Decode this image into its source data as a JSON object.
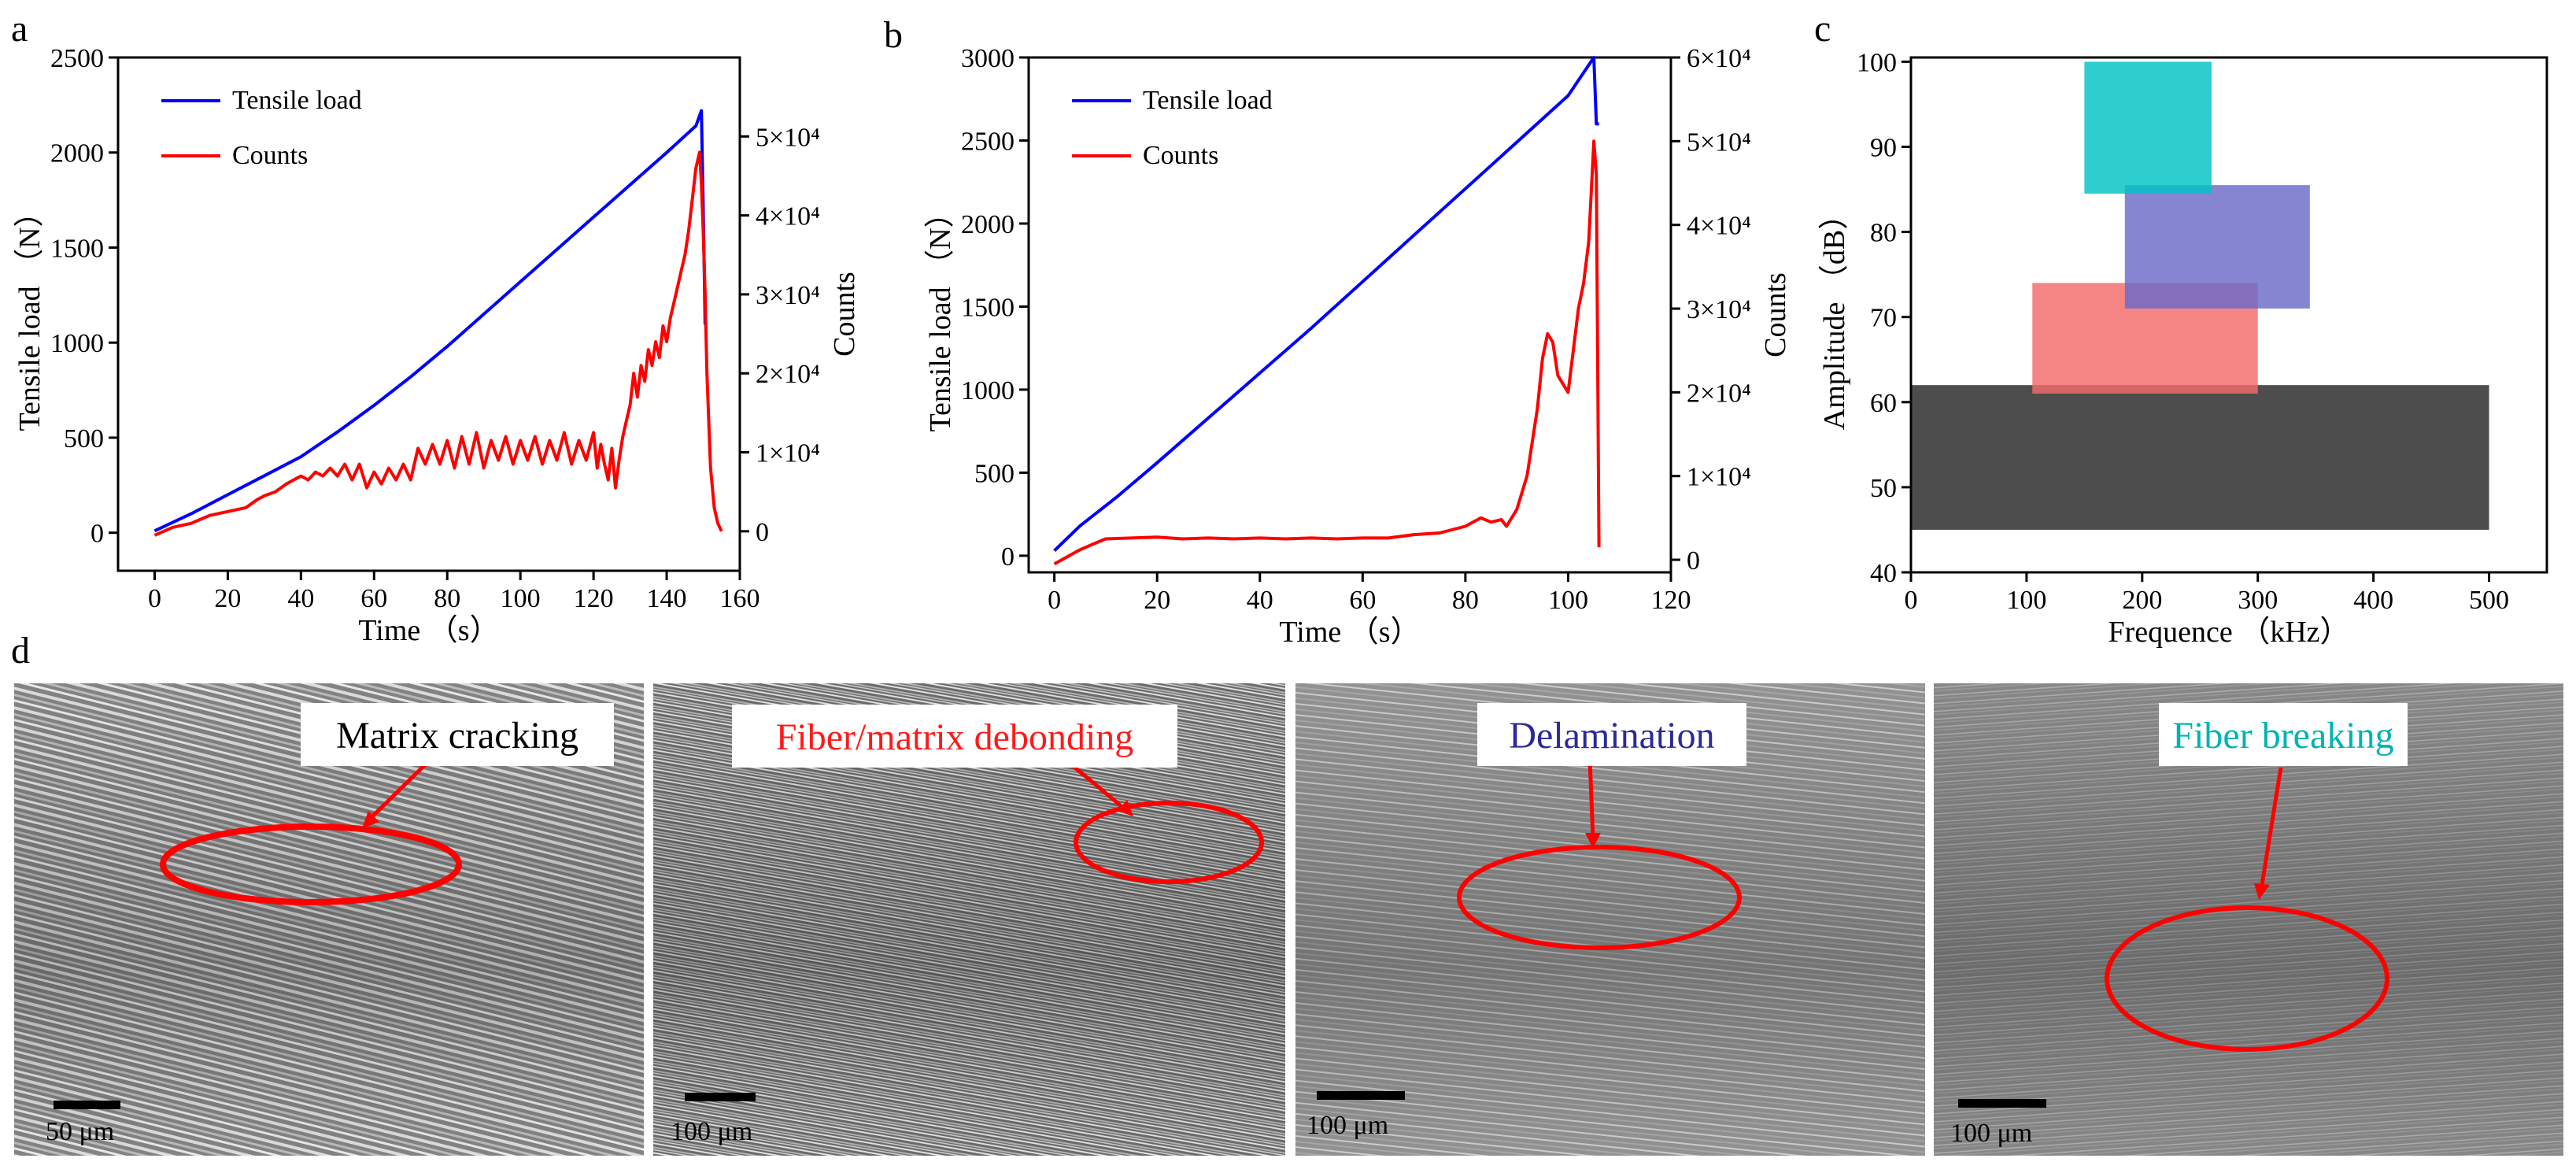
{
  "panels": {
    "a": {
      "label": "a"
    },
    "b": {
      "label": "b"
    },
    "c": {
      "label": "c"
    },
    "d": {
      "label": "d"
    }
  },
  "colors": {
    "load": "#0000ff",
    "counts": "#ff0000",
    "fiber_breaking": "#00c3c3",
    "delamination": "#6a6ac8",
    "debonding": "#f36a6a",
    "matrix": "#4d4d4d",
    "marker": "#ff0000"
  },
  "chart_data": [
    {
      "id": "a",
      "type": "line",
      "xlabel": "Time （s）",
      "ylabel": "Tensile load （N）",
      "y2label": "Counts",
      "xlim": [
        -10,
        160
      ],
      "ylim": [
        -200,
        2500
      ],
      "y2lim": [
        -5000,
        60000
      ],
      "xticks": [
        "0",
        "20",
        "40",
        "60",
        "80",
        "100",
        "120",
        "140",
        "160"
      ],
      "yticks": [
        "0",
        "500",
        "1000",
        "1500",
        "2000",
        "2500"
      ],
      "y2ticks": [
        "0",
        "1×10⁴",
        "2×10⁴",
        "3×10⁴",
        "4×10⁴",
        "5×10⁴"
      ],
      "legend_position": "top-left",
      "series": [
        {
          "name": "Tensile load",
          "axis": "left",
          "x": [
            0,
            10,
            20,
            30,
            40,
            50,
            60,
            70,
            80,
            90,
            100,
            110,
            120,
            130,
            140,
            148,
            149.5,
            150,
            150.5,
            151
          ],
          "y": [
            10,
            100,
            200,
            300,
            400,
            530,
            670,
            820,
            980,
            1150,
            1320,
            1490,
            1660,
            1830,
            2000,
            2140,
            2220,
            1700,
            1100,
            1100
          ]
        },
        {
          "name": "Counts",
          "axis": "right",
          "x": [
            0,
            5,
            10,
            15,
            20,
            25,
            28,
            30,
            33,
            36,
            38,
            40,
            42,
            44,
            46,
            48,
            50,
            52,
            54,
            56,
            58,
            60,
            62,
            64,
            66,
            68,
            70,
            72,
            74,
            76,
            78,
            80,
            82,
            84,
            86,
            88,
            90,
            92,
            94,
            96,
            98,
            100,
            102,
            104,
            106,
            108,
            110,
            112,
            114,
            116,
            118,
            120,
            121,
            122,
            123,
            124,
            125,
            126,
            127,
            128,
            129,
            130,
            131,
            132,
            133,
            134,
            135,
            136,
            137,
            138,
            139,
            140,
            141,
            142,
            143,
            144,
            145,
            146,
            147,
            148,
            149,
            149.5,
            150,
            150.5,
            151,
            152,
            153,
            154,
            155
          ],
          "y": [
            -500,
            500,
            1000,
            2000,
            2500,
            3000,
            4000,
            4500,
            5000,
            6000,
            6500,
            7000,
            6500,
            7500,
            7000,
            8000,
            7000,
            8500,
            6500,
            8500,
            5500,
            7500,
            6000,
            8000,
            6500,
            8500,
            6500,
            10500,
            8500,
            11000,
            8500,
            11500,
            8000,
            12000,
            8500,
            12500,
            8000,
            11500,
            9000,
            12000,
            8500,
            11500,
            9000,
            12000,
            8500,
            11500,
            9000,
            12500,
            8500,
            11500,
            9000,
            12500,
            8000,
            11000,
            8500,
            6500,
            10500,
            5500,
            9000,
            12000,
            14000,
            16000,
            20000,
            17000,
            21000,
            19000,
            23000,
            21000,
            24000,
            22000,
            26000,
            24000,
            27000,
            29000,
            31000,
            33000,
            35000,
            38000,
            42000,
            46000,
            48000,
            44000,
            38000,
            30000,
            20000,
            8000,
            3000,
            1000,
            0
          ]
        }
      ]
    },
    {
      "id": "b",
      "type": "line",
      "xlabel": "Time （s）",
      "ylabel": "Tensile load （N）",
      "y2label": "Counts",
      "xlim": [
        -5,
        120
      ],
      "ylim": [
        -100,
        3000
      ],
      "y2lim": [
        -1500,
        60000
      ],
      "xticks": [
        "0",
        "20",
        "40",
        "60",
        "80",
        "100",
        "120"
      ],
      "yticks": [
        "0",
        "500",
        "1000",
        "1500",
        "2000",
        "2500",
        "3000"
      ],
      "y2ticks": [
        "0",
        "1×10⁴",
        "2×10⁴",
        "3×10⁴",
        "4×10⁴",
        "5×10⁴",
        "6×10⁴"
      ],
      "legend_position": "top-left",
      "series": [
        {
          "name": "Tensile load",
          "axis": "left",
          "x": [
            0,
            5,
            12,
            20,
            30,
            40,
            50,
            60,
            70,
            80,
            90,
            100,
            105,
            105.5,
            106
          ],
          "y": [
            30,
            180,
            350,
            560,
            830,
            1100,
            1370,
            1650,
            1930,
            2210,
            2490,
            2770,
            3000,
            2600,
            2600
          ]
        },
        {
          "name": "Counts",
          "axis": "right",
          "x": [
            0,
            5,
            8,
            10,
            15,
            20,
            25,
            30,
            35,
            40,
            45,
            50,
            55,
            60,
            65,
            70,
            75,
            80,
            83,
            85,
            87,
            88,
            90,
            92,
            94,
            95,
            96,
            97,
            98,
            99,
            100,
            101,
            102,
            103,
            104,
            105,
            105.5,
            106
          ],
          "y": [
            -500,
            1200,
            2000,
            2500,
            2600,
            2700,
            2500,
            2600,
            2500,
            2600,
            2500,
            2600,
            2500,
            2600,
            2600,
            3000,
            3200,
            4000,
            5000,
            4500,
            4800,
            4000,
            6000,
            10000,
            18000,
            24000,
            27000,
            26000,
            22000,
            21000,
            20000,
            25000,
            30000,
            33000,
            38000,
            50000,
            46000,
            1500
          ]
        }
      ]
    },
    {
      "id": "c",
      "type": "bar",
      "xlabel": "Frequence （kHz）",
      "ylabel": "Amplitude （dB）",
      "xlim": [
        0,
        550
      ],
      "ylim": [
        40,
        100.5
      ],
      "xticks": [
        "0",
        "100",
        "200",
        "300",
        "400",
        "500"
      ],
      "yticks": [
        "40",
        "50",
        "60",
        "70",
        "80",
        "90",
        "100"
      ],
      "regions": [
        {
          "color_key": "matrix",
          "x": [
            0,
            500
          ],
          "y": [
            45,
            62
          ]
        },
        {
          "color_key": "debonding",
          "x": [
            105,
            300
          ],
          "y": [
            61,
            74
          ]
        },
        {
          "color_key": "delamination",
          "x": [
            185,
            345
          ],
          "y": [
            71,
            85.5
          ]
        },
        {
          "color_key": "fiber_breaking",
          "x": [
            150,
            260
          ],
          "y": [
            84.5,
            100
          ]
        }
      ]
    }
  ],
  "micrographs": [
    {
      "label": "Matrix cracking",
      "color_key": "matrix_text",
      "label_color": "#000000",
      "scale": "50 μm"
    },
    {
      "label": "Fiber/matrix debonding",
      "label_color": "#ff1a1a",
      "scale": "100 μm"
    },
    {
      "label": "Delamination",
      "label_color": "#2a2a9a",
      "scale": "100 μm"
    },
    {
      "label": "Fiber breaking",
      "label_color": "#00b3b3",
      "scale": "100 μm"
    }
  ]
}
